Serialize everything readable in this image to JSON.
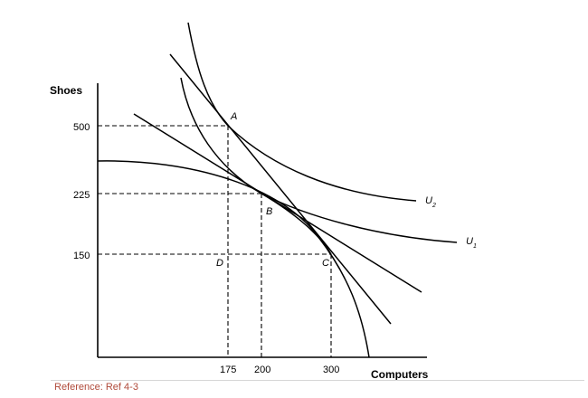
{
  "chart_data": {
    "type": "line",
    "title": "",
    "xlabel": "Computers",
    "ylabel": "Shoes",
    "x_ticks": [
      "175",
      "200",
      "300"
    ],
    "y_ticks": [
      "500",
      "225",
      "150"
    ],
    "points": [
      {
        "label": "A",
        "x": 175,
        "y": 500
      },
      {
        "label": "B",
        "x": 200,
        "y": 225
      },
      {
        "label": "C",
        "x": 300,
        "y": 150
      },
      {
        "label": "D",
        "x": 175,
        "y": 150
      }
    ],
    "series": [
      {
        "name": "U",
        "sub": "2"
      },
      {
        "name": "U",
        "sub": "1"
      }
    ],
    "grid": false,
    "legend": "none"
  },
  "footer": {
    "reference": "Reference: Ref 4-3",
    "reference_color": "#b04a3a"
  }
}
